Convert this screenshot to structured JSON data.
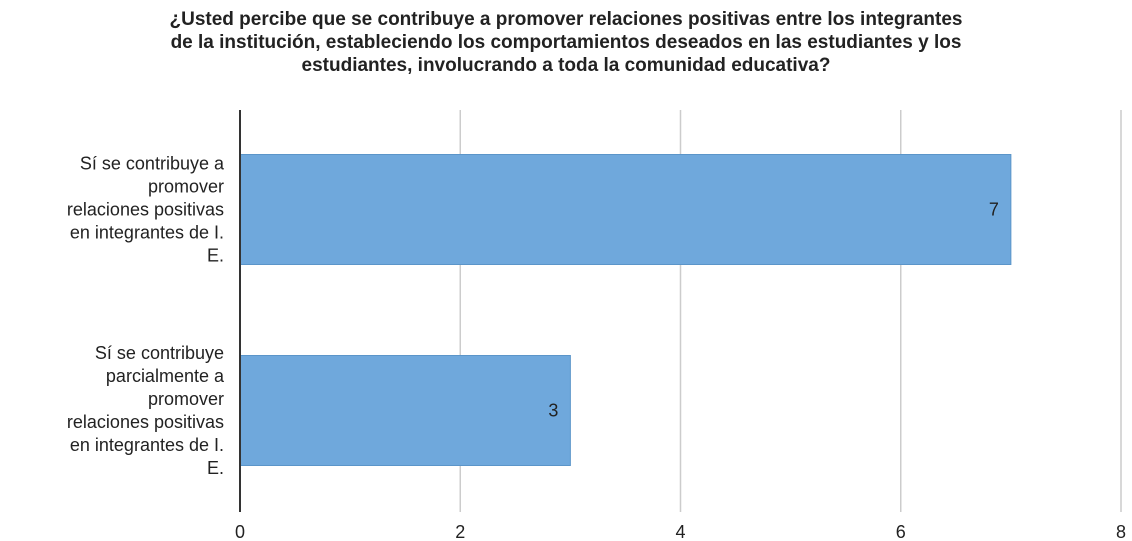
{
  "chart_data": {
    "type": "bar",
    "orientation": "horizontal",
    "title_lines": [
      "¿Usted percibe que se contribuye a promover relaciones positivas entre los integrantes",
      "de la institución, estableciendo los comportamientos deseados en las estudiantes y los",
      "estudiantes, involucrando a toda la comunidad educativa?"
    ],
    "categories": [
      [
        "Sí se contribuye a",
        "promover",
        "relaciones positivas",
        "en integrantes de I.",
        "E."
      ],
      [
        "Sí se contribuye",
        "parcialmente a",
        "promover",
        "relaciones positivas",
        "en integrantes de I.",
        "E."
      ]
    ],
    "values": [
      7,
      3
    ],
    "data_labels": [
      "7",
      "3"
    ],
    "xlim": [
      0,
      8
    ],
    "x_ticks": [
      0,
      2,
      4,
      6,
      8
    ],
    "grid": true,
    "bar_color": "#6fa8dc",
    "bar_border_color": "#5b95c9",
    "grid_color": "#cccccc",
    "axis_color": "#333333"
  }
}
